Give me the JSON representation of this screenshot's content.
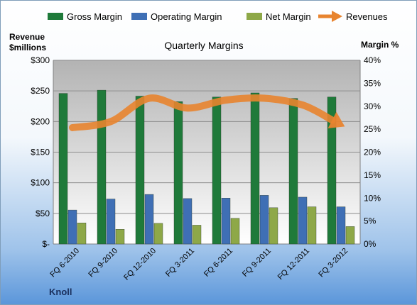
{
  "chart_data": {
    "type": "bar",
    "title": "Quarterly Margins",
    "company_label": "Knoll",
    "left_axis": {
      "label_line1": "Revenue",
      "label_line2": "$millions",
      "range": [
        0,
        300
      ],
      "ticks": [
        0,
        50,
        100,
        150,
        200,
        250,
        300
      ],
      "tick_labels": [
        "$-",
        "$50",
        "$100",
        "$150",
        "$200",
        "$250",
        "$300"
      ]
    },
    "right_axis": {
      "label": "Margin %",
      "range": [
        0,
        40
      ],
      "ticks": [
        0,
        5,
        10,
        15,
        20,
        25,
        30,
        35,
        40
      ],
      "tick_labels": [
        "0%",
        "5%",
        "10%",
        "15%",
        "20%",
        "25%",
        "30%",
        "35%",
        "40%"
      ]
    },
    "categories": [
      "FQ 6-2010",
      "FQ 9-2010",
      "FQ 12-2010",
      "FQ 3-2011",
      "FQ 6-2011",
      "FQ 9-2011",
      "FQ 12-2011",
      "FQ 3-2012"
    ],
    "series": [
      {
        "name": "Gross Margin",
        "kind": "bar",
        "axis": "right",
        "color": "#1f7a3a",
        "values": [
          32.8,
          33.5,
          32.2,
          31.0,
          32.0,
          32.9,
          31.7,
          32.0
        ]
      },
      {
        "name": "Operating Margin",
        "kind": "bar",
        "axis": "right",
        "color": "#3f6fb5",
        "values": [
          7.4,
          9.8,
          10.8,
          9.9,
          10.0,
          10.6,
          10.2,
          8.1
        ]
      },
      {
        "name": "Net Margin",
        "kind": "bar",
        "axis": "right",
        "color": "#8ea848",
        "values": [
          4.6,
          3.2,
          4.5,
          4.1,
          5.6,
          7.9,
          8.1,
          3.8
        ]
      },
      {
        "name": "Revenues",
        "kind": "line",
        "axis": "left",
        "color": "#e8842f",
        "values": [
          190,
          200,
          238,
          222,
          235,
          238,
          227,
          195
        ]
      }
    ],
    "legend_position": "top",
    "grid": true
  }
}
